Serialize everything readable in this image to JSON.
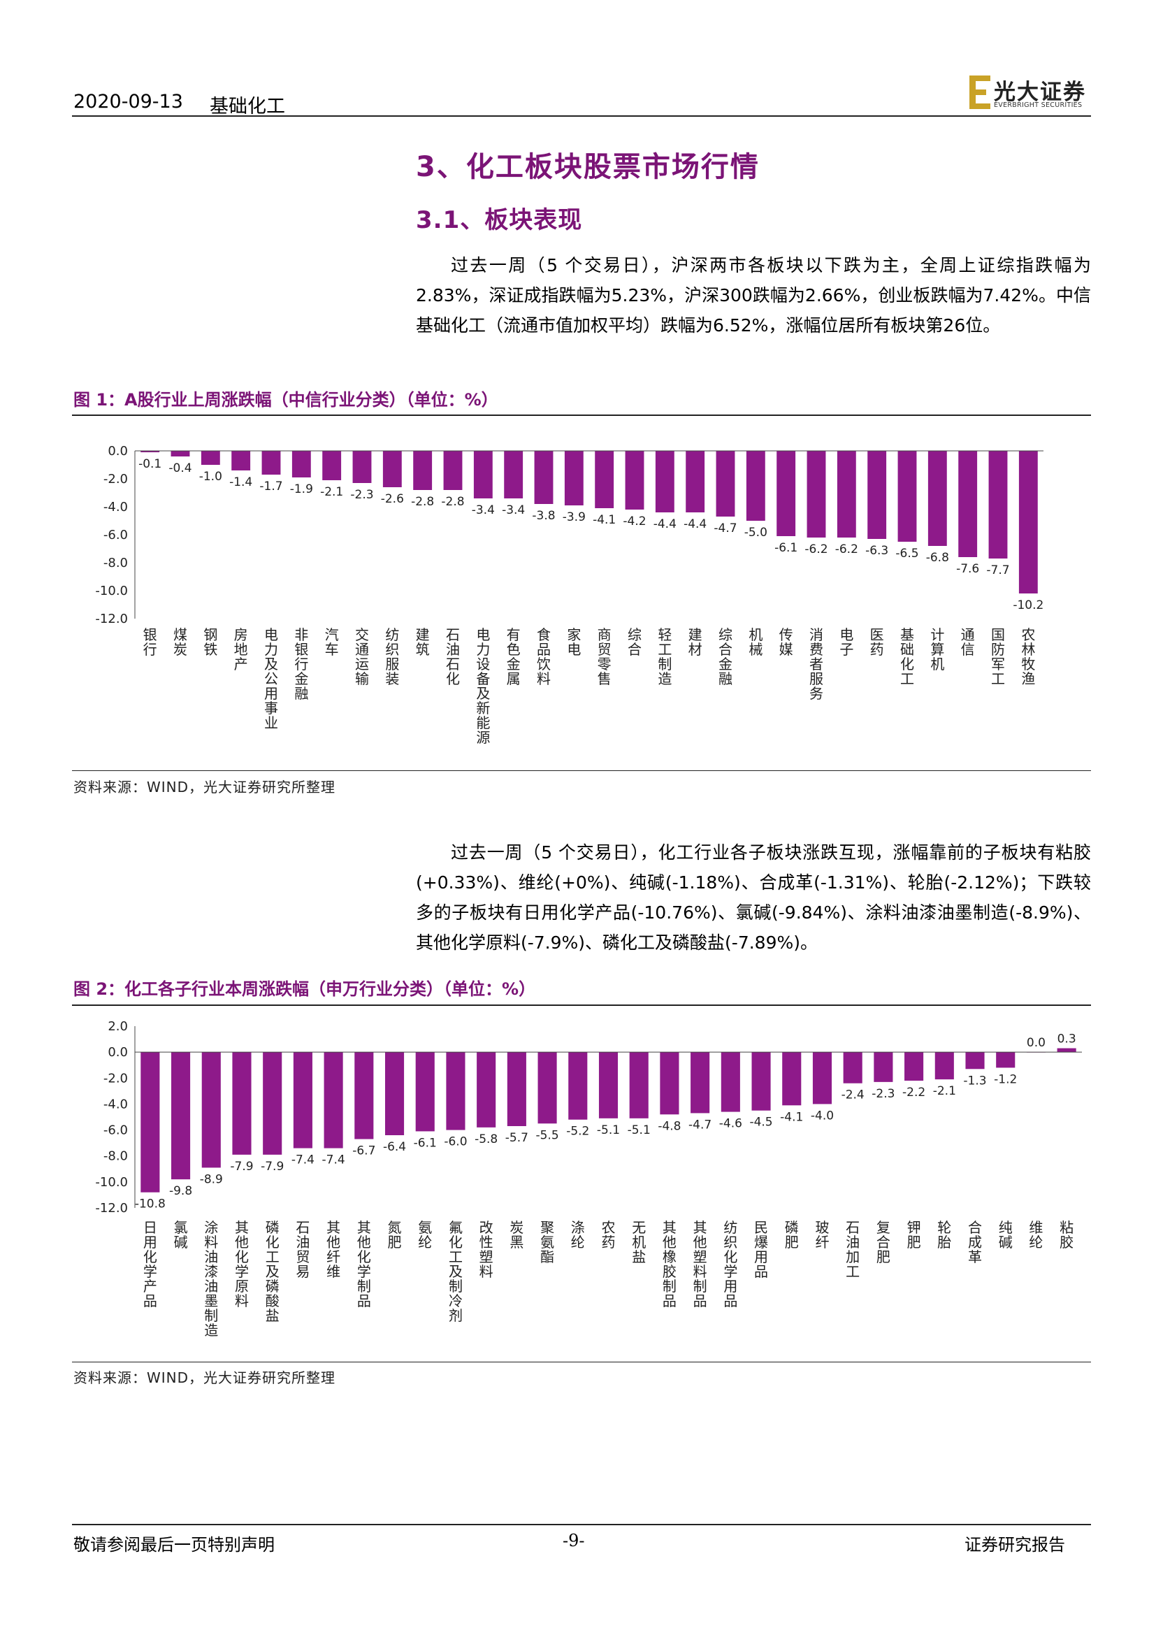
{
  "header": {
    "date": "2020-09-13",
    "title": "基础化工",
    "logo_name": "光大证券",
    "logo_sub": "EVERBRIGHT SECURITIES"
  },
  "section": {
    "title": "3、化工板块股票市场行情",
    "subtitle": "3.1、板块表现"
  },
  "paragraph1": "过去一周（5 个交易日），沪深两市各板块以下跌为主，全周上证综指跌幅为2.83%，深证成指跌幅为5.23%，沪深300跌幅为2.66%，创业板跌幅为7.42%。中信基础化工（流通市值加权平均）跌幅为6.52%，涨幅位居所有板块第26位。",
  "figure1": {
    "title": "图 1：A股行业上周涨跌幅（中信行业分类）（单位：%）",
    "source": "资料来源：WIND，光大证券研究所整理"
  },
  "paragraph2": "过去一周（5 个交易日），化工行业各子板块涨跌互现，涨幅靠前的子板块有粘胶(+0.33%)、维纶(+0%)、纯碱(-1.18%)、合成革(-1.31%)、轮胎(-2.12%)；下跌较多的子板块有日用化学产品(-10.76%)、氯碱(-9.84%)、涂料油漆油墨制造(-8.9%)、其他化学原料(-7.9%)、磷化工及磷酸盐(-7.89%)。",
  "figure2": {
    "title": "图 2：化工各子行业本周涨跌幅（申万行业分类）（单位：%）",
    "source": "资料来源：WIND，光大证券研究所整理"
  },
  "footer": {
    "left": "敬请参阅最后一页特别声明",
    "page": "-9-",
    "right": "证券研究报告"
  },
  "colors": {
    "bar": "#8e1a8a",
    "accent": "#7b1476"
  },
  "chart_data": [
    {
      "type": "bar",
      "categories": [
        "银行",
        "煤炭",
        "钢铁",
        "房地产",
        "电力及公用事业",
        "非银行金融",
        "汽车",
        "交通运输",
        "纺织服装",
        "建筑",
        "石油石化",
        "电力设备及新能源",
        "有色金属",
        "食品饮料",
        "家电",
        "商贸零售",
        "综合",
        "轻工制造",
        "建材",
        "综合金融",
        "机械",
        "传媒",
        "消费者服务",
        "电子",
        "医药",
        "基础化工",
        "计算机",
        "通信",
        "国防军工",
        "农林牧渔"
      ],
      "values": [
        -0.1,
        -0.4,
        -1.0,
        -1.4,
        -1.7,
        -1.9,
        -2.1,
        -2.3,
        -2.6,
        -2.8,
        -2.8,
        -3.4,
        -3.4,
        -3.8,
        -3.9,
        -4.1,
        -4.2,
        -4.4,
        -4.4,
        -4.7,
        -5.0,
        -6.1,
        -6.2,
        -6.2,
        -6.3,
        -6.5,
        -6.8,
        -7.6,
        -7.7,
        -10.2
      ],
      "labels": [
        "-0.1",
        "-0.4",
        "-1.0",
        "-1.4",
        "-1.7",
        "-1.9",
        "-2.1",
        "-2.3",
        "-2.6",
        "-2.8",
        "-2.8",
        "-3.4",
        "-3.4",
        "-3.8",
        "-3.9",
        "-4.1",
        "-4.2",
        "-4.4",
        "-4.4",
        "-4.7",
        "-5.0",
        "-6.1",
        "-6.2",
        "-6.2",
        "-6.3",
        "-6.5",
        "-6.8",
        "-7.6",
        "-7.7",
        "-10.2"
      ],
      "yticks": [
        "0.0",
        "-2.0",
        "-4.0",
        "-6.0",
        "-8.0",
        "-10.0",
        "-12.0"
      ],
      "ylim": [
        -12,
        0
      ]
    },
    {
      "type": "bar",
      "categories": [
        "日用化学产品",
        "氯碱",
        "涂料油漆油墨制造",
        "其他化学原料",
        "磷化工及磷酸盐",
        "石油贸易",
        "其他纤维",
        "其他化学制品",
        "氮肥",
        "氨纶",
        "氟化工及制冷剂",
        "改性塑料",
        "炭黑",
        "聚氨酯",
        "涤纶",
        "农药",
        "无机盐",
        "其他橡胶制品",
        "其他塑料制品",
        "纺织化学用品",
        "民爆用品",
        "磷肥",
        "玻纤",
        "石油加工",
        "复合肥",
        "钾肥",
        "轮胎",
        "合成革",
        "纯碱",
        "维纶",
        "粘胶"
      ],
      "values": [
        -10.8,
        -9.8,
        -8.9,
        -7.9,
        -7.9,
        -7.4,
        -7.4,
        -6.7,
        -6.4,
        -6.1,
        -6.0,
        -5.8,
        -5.7,
        -5.5,
        -5.2,
        -5.1,
        -5.1,
        -4.8,
        -4.7,
        -4.6,
        -4.5,
        -4.1,
        -4.0,
        -2.4,
        -2.3,
        -2.2,
        -2.1,
        -1.3,
        -1.2,
        0.0,
        0.3
      ],
      "labels": [
        "-10.8",
        "-9.8",
        "-8.9",
        "-7.9",
        "-7.9",
        "-7.4",
        "-7.4",
        "-6.7",
        "-6.4",
        "-6.1",
        "-6.0",
        "-5.8",
        "-5.7",
        "-5.5",
        "-5.2",
        "-5.1",
        "-5.1",
        "-4.8",
        "-4.7",
        "-4.6",
        "-4.5",
        "-4.1",
        "-4.0",
        "-2.4",
        "-2.3",
        "-2.2",
        "-2.1",
        "-1.3",
        "-1.2",
        "0.0",
        "0.3"
      ],
      "yticks": [
        "2.0",
        "0.0",
        "-2.0",
        "-4.0",
        "-6.0",
        "-8.0",
        "-10.0",
        "-12.0"
      ],
      "ylim": [
        -12,
        2
      ]
    }
  ]
}
